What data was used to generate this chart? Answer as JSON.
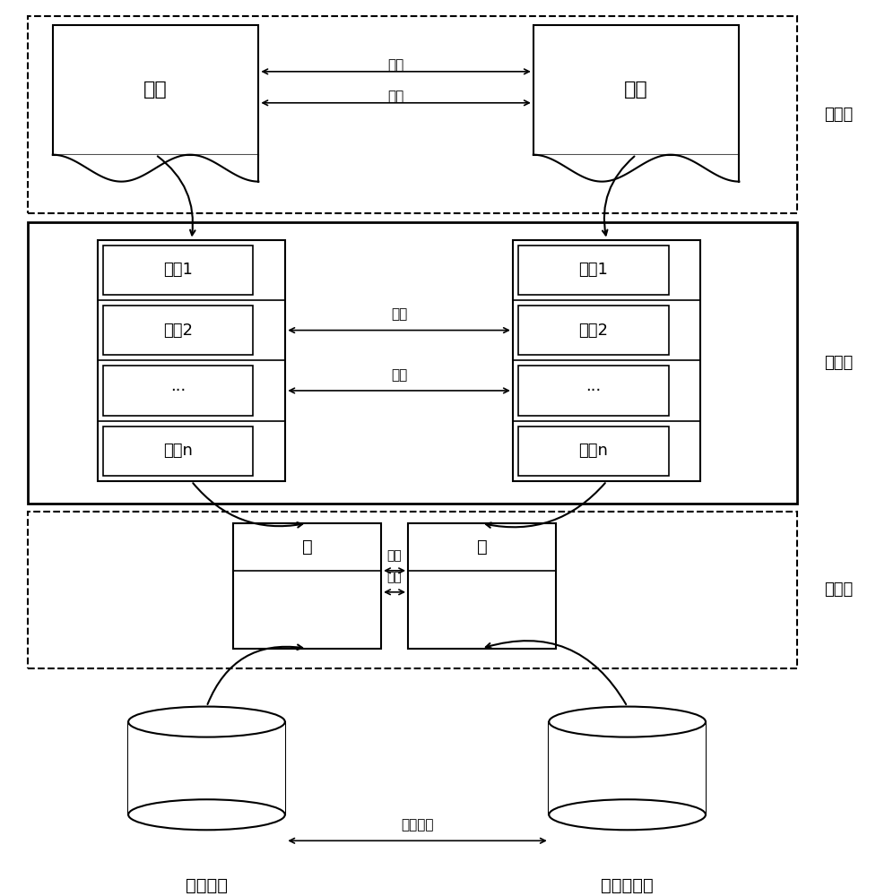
{
  "bg_color": "#ffffff",
  "fig_width": 9.77,
  "fig_height": 10.0,
  "layer3_label": "层次三",
  "layer2_label": "层次二",
  "layer1_label": "层次一",
  "data_label": "数据",
  "field1_label": "字段1",
  "field2_label": "字段2",
  "dots_label": "···",
  "fieldn_label": "字段n",
  "table_label": "表",
  "source_db_label": "源数据库",
  "target_db_label": "目标数据库",
  "map_label": "映射",
  "data_convert_label": "数据转换"
}
